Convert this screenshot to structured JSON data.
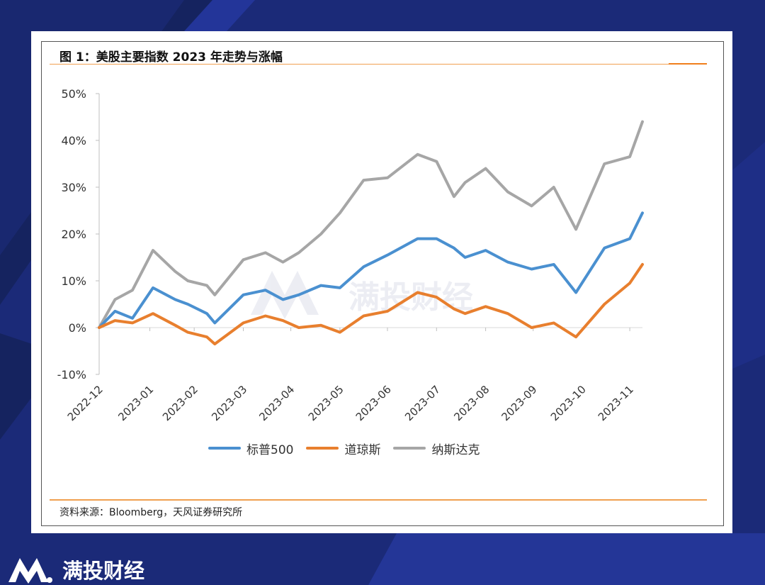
{
  "brand": {
    "name": "满投财经"
  },
  "card": {
    "title": "图 1：美股主要指数 2023 年走势与涨幅",
    "source": "资料来源：Bloomberg，天风证券研究所"
  },
  "colors": {
    "background": "#1b2a78",
    "accent_rule": "#f07f1c",
    "sp500": "#4a90d0",
    "dow": "#e87f2e",
    "nasdaq": "#a6a6a6"
  },
  "chart_data": {
    "type": "line",
    "title": "图 1：美股主要指数 2023 年走势与涨幅",
    "xlabel": "",
    "ylabel": "",
    "ylim": [
      -10,
      50
    ],
    "ytick_labels": [
      "50%",
      "40%",
      "30%",
      "20%",
      "10%",
      "0%",
      "-10%"
    ],
    "x_tick_labels": [
      "2022-12",
      "2023-01",
      "2023-02",
      "2023-03",
      "2023-04",
      "2023-05",
      "2023-06",
      "2023-07",
      "2023-08",
      "2023-09",
      "2023-10",
      "2023-11"
    ],
    "x": [
      "2022-12-30",
      "2023-01-09",
      "2023-01-20",
      "2023-02-02",
      "2023-02-16",
      "2023-02-24",
      "2023-03-08",
      "2023-03-13",
      "2023-03-31",
      "2023-04-14",
      "2023-04-25",
      "2023-05-05",
      "2023-05-19",
      "2023-05-31",
      "2023-06-15",
      "2023-06-30",
      "2023-07-19",
      "2023-07-31",
      "2023-08-11",
      "2023-08-18",
      "2023-08-31",
      "2023-09-14",
      "2023-09-29",
      "2023-10-13",
      "2023-10-27",
      "2023-11-14",
      "2023-11-30",
      "2023-12-08"
    ],
    "series": [
      {
        "name": "标普500",
        "values": [
          0,
          3.5,
          2.0,
          8.5,
          6.0,
          5.0,
          3.0,
          1.0,
          7.0,
          8.0,
          6.0,
          7.0,
          9.0,
          8.5,
          13.0,
          15.5,
          19.0,
          19.0,
          17.0,
          15.0,
          16.5,
          14.0,
          12.5,
          13.5,
          7.5,
          17.0,
          19.0,
          24.5
        ]
      },
      {
        "name": "道琼斯",
        "values": [
          0,
          1.5,
          1.0,
          3.0,
          0.5,
          -1.0,
          -2.0,
          -3.5,
          1.0,
          2.5,
          1.5,
          0,
          0.5,
          -1.0,
          2.5,
          3.5,
          7.5,
          6.5,
          4.0,
          3.0,
          4.5,
          3.0,
          0,
          1.0,
          -2.0,
          5.0,
          9.5,
          13.5
        ]
      },
      {
        "name": "纳斯达克",
        "values": [
          0,
          6.0,
          8.0,
          16.5,
          12.0,
          10.0,
          9.0,
          7.0,
          14.5,
          16.0,
          14.0,
          16.0,
          20.0,
          24.5,
          31.5,
          32.0,
          37.0,
          35.5,
          28.0,
          31.0,
          34.0,
          29.0,
          26.0,
          30.0,
          21.0,
          35.0,
          36.5,
          44.0
        ]
      }
    ],
    "grid": false,
    "legend": "bottom"
  }
}
